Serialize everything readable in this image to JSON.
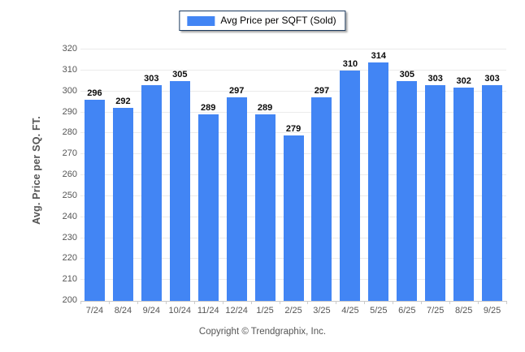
{
  "legend": {
    "label": "Avg Price per SQFT (Sold)",
    "swatch_color": "#4285F4",
    "border_color": "#1c3a5e"
  },
  "footer": {
    "copyright": "Copyright © Trendgraphix, Inc."
  },
  "colors": {
    "bar": "#4285F4",
    "gridline": "#ebebeb",
    "axis_line": "#c9c9c9",
    "tick_label": "#555555",
    "value_label": "#0a0a0a"
  },
  "chart_data": {
    "type": "bar",
    "title": "",
    "categories": [
      "7/24",
      "8/24",
      "9/24",
      "10/24",
      "11/24",
      "12/24",
      "1/25",
      "2/25",
      "3/25",
      "4/25",
      "5/25",
      "6/25",
      "7/25",
      "8/25",
      "9/25"
    ],
    "series": [
      {
        "name": "Avg Price per SQFT (Sold)",
        "values": [
          296,
          292,
          303,
          305,
          289,
          297,
          289,
          279,
          297,
          310,
          314,
          305,
          303,
          302,
          303
        ]
      }
    ],
    "xlabel": "",
    "ylabel": "Avg. Price per SQ. FT.",
    "ylim": [
      200,
      320
    ],
    "ytick_step": 10,
    "grid": true,
    "legend_position": "top-center",
    "value_labels": true
  }
}
